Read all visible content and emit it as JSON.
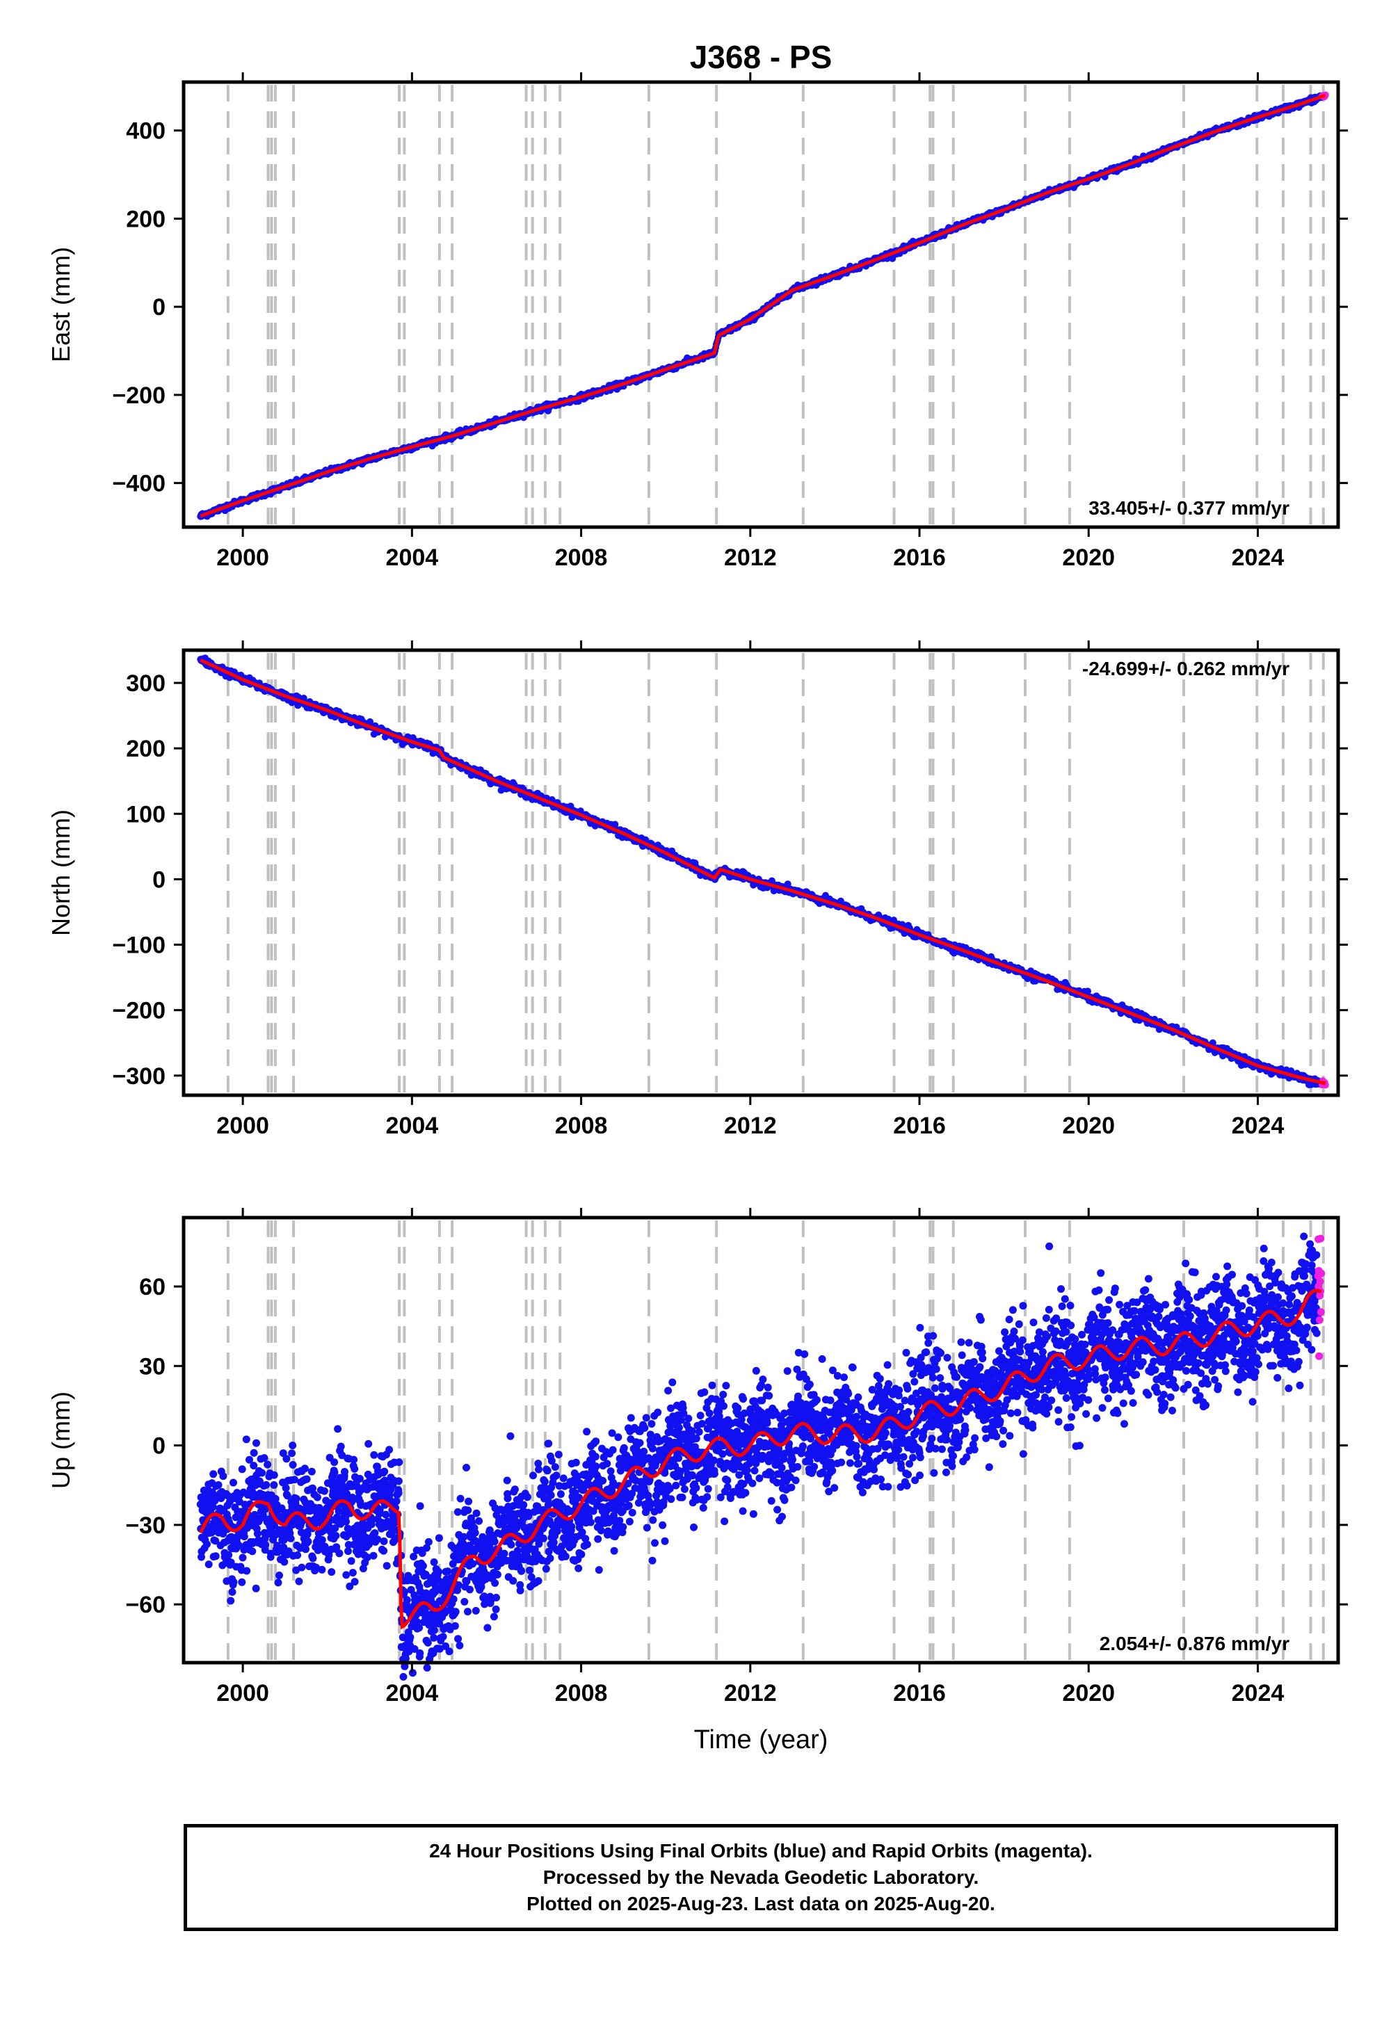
{
  "title": "J368 - PS",
  "xlabel": "Time (year)",
  "footer": {
    "line1": "24 Hour Positions Using Final Orbits (blue) and Rapid Orbits (magenta).",
    "line2": "Processed by the Nevada Geodetic Laboratory.",
    "line3": "Plotted on 2025-Aug-23. Last data on 2025-Aug-20."
  },
  "colors": {
    "final_orbits": "#1010f0",
    "rapid_orbits": "#f020e0",
    "model": "#ff0000",
    "event_lines": "#c0c0c0"
  },
  "event_years": [
    1999.65,
    2000.6,
    2000.68,
    2000.77,
    2001.2,
    2003.7,
    2003.82,
    2004.65,
    2004.95,
    2006.7,
    2006.85,
    2007.15,
    2007.5,
    2009.6,
    2011.2,
    2013.25,
    2015.4,
    2016.25,
    2016.32,
    2016.8,
    2018.5,
    2019.55,
    2022.25,
    2023.98,
    2024.6,
    2025.25,
    2025.55
  ],
  "chart_data": [
    {
      "type": "scatter",
      "panel": "east",
      "ylabel": "East (mm)",
      "rate": "33.405+/- 0.377 mm/yr",
      "xlim": [
        1998.6,
        2025.9
      ],
      "ylim": [
        -500,
        510
      ],
      "xticks": [
        2000,
        2004,
        2008,
        2012,
        2016,
        2020,
        2024
      ],
      "yticks": [
        -400,
        -200,
        0,
        200,
        400
      ],
      "ytick_labels": [
        "−400",
        "−200",
        "0",
        "200",
        "400"
      ],
      "series": [
        {
          "x": [
            1999.0,
            2000.0,
            2001.0,
            2002.0,
            2003.0,
            2004.0,
            2005.0,
            2006.0,
            2007.0,
            2008.0,
            2009.0,
            2010.0,
            2011.15,
            2011.25,
            2012.0,
            2013.0,
            2014.0,
            2015.0,
            2016.0,
            2017.0,
            2018.0,
            2019.0,
            2020.0,
            2021.0,
            2022.0,
            2023.0,
            2024.0,
            2025.0,
            2025.6
          ],
          "y": [
            -475,
            -440,
            -408,
            -375,
            -345,
            -318,
            -292,
            -262,
            -232,
            -205,
            -175,
            -142,
            -105,
            -65,
            -28,
            38,
            72,
            108,
            145,
            185,
            220,
            258,
            290,
            325,
            362,
            398,
            430,
            460,
            480
          ]
        }
      ]
    },
    {
      "type": "scatter",
      "panel": "north",
      "ylabel": "North (mm)",
      "rate": "-24.699+/- 0.262 mm/yr",
      "xlim": [
        1998.6,
        2025.9
      ],
      "ylim": [
        -330,
        350
      ],
      "xticks": [
        2000,
        2004,
        2008,
        2012,
        2016,
        2020,
        2024
      ],
      "yticks": [
        -300,
        -200,
        -100,
        0,
        100,
        200,
        300
      ],
      "ytick_labels": [
        "−300",
        "−200",
        "−100",
        "0",
        "100",
        "200",
        "300"
      ],
      "series": [
        {
          "x": [
            1999.0,
            2000.0,
            2001.0,
            2002.0,
            2003.0,
            2004.0,
            2004.65,
            2004.75,
            2006.0,
            2007.0,
            2008.0,
            2009.0,
            2010.0,
            2011.15,
            2011.3,
            2012.0,
            2013.0,
            2014.0,
            2015.0,
            2016.0,
            2017.0,
            2018.0,
            2019.0,
            2020.0,
            2021.0,
            2022.0,
            2023.0,
            2024.0,
            2025.0,
            2025.6
          ],
          "y": [
            335,
            305,
            280,
            258,
            233,
            210,
            197,
            186,
            150,
            124,
            98,
            70,
            40,
            2,
            15,
            0,
            -18,
            -38,
            -60,
            -85,
            -108,
            -132,
            -155,
            -180,
            -205,
            -230,
            -258,
            -285,
            -303,
            -312
          ]
        }
      ]
    },
    {
      "type": "scatter",
      "panel": "up",
      "ylabel": "Up (mm)",
      "rate": "2.054+/- 0.876 mm/yr",
      "xlim": [
        1998.6,
        2025.9
      ],
      "ylim": [
        -82,
        86
      ],
      "xticks": [
        2000,
        2004,
        2008,
        2012,
        2016,
        2020,
        2024
      ],
      "yticks": [
        -60,
        -30,
        0,
        30,
        60
      ],
      "ytick_labels": [
        "−60",
        "−30",
        "0",
        "30",
        "60"
      ],
      "series": [
        {
          "x": [
            1999.0,
            1999.5,
            2000.0,
            2000.6,
            2001.0,
            2001.5,
            2002.0,
            2002.5,
            2003.0,
            2003.7,
            2003.75,
            2004.5,
            2005.0,
            2005.5,
            2006.0,
            2007.0,
            2008.0,
            2009.0,
            2010.0,
            2011.0,
            2012.0,
            2013.0,
            2014.0,
            2015.0,
            2016.0,
            2017.0,
            2018.0,
            2019.0,
            2020.0,
            2021.0,
            2022.0,
            2023.0,
            2024.0,
            2025.0,
            2025.5
          ],
          "y": [
            -33,
            -27,
            -30,
            -20,
            -30,
            -28,
            -28,
            -22,
            -26,
            -22,
            -65,
            -62,
            -52,
            -42,
            -40,
            -30,
            -22,
            -14,
            -6,
            -1,
            0,
            5,
            4,
            5,
            12,
            16,
            22,
            30,
            33,
            37,
            38,
            42,
            46,
            50,
            58
          ]
        }
      ]
    }
  ]
}
